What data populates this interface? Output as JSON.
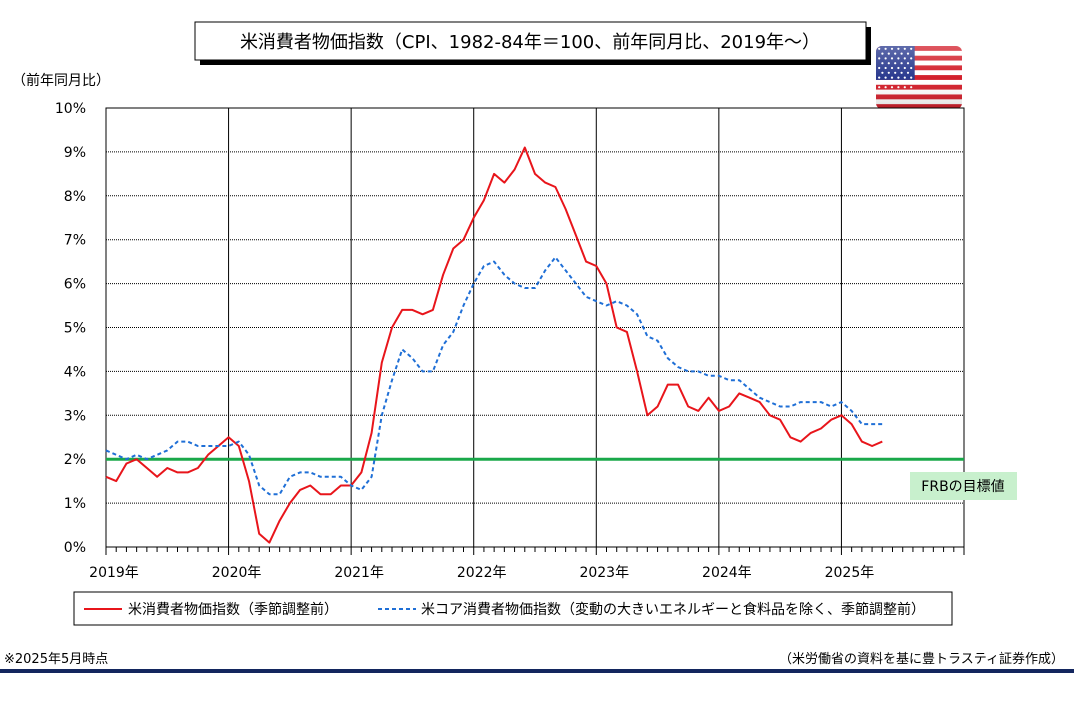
{
  "chart_data": {
    "type": "line",
    "title": "米消費者物価指数（CPI、1982-84年＝100、前年同月比、2019年～）",
    "ylabel": "（前年同月比）",
    "ylim": [
      0,
      10
    ],
    "yticks": [
      "0%",
      "1%",
      "2%",
      "3%",
      "4%",
      "5%",
      "6%",
      "7%",
      "8%",
      "9%",
      "10%"
    ],
    "xlim": [
      0,
      84
    ],
    "xtick_labels": [
      "2019年",
      "2020年",
      "2021年",
      "2022年",
      "2023年",
      "2024年",
      "2025年"
    ],
    "grid": true,
    "legend_position": "bottom",
    "series": [
      {
        "name": "米消費者物価指数（季節調整前）",
        "color": "#e8151b",
        "style": "solid",
        "values": [
          1.6,
          1.5,
          1.9,
          2.0,
          1.8,
          1.6,
          1.8,
          1.7,
          1.7,
          1.8,
          2.1,
          2.3,
          2.5,
          2.3,
          1.5,
          0.3,
          0.1,
          0.6,
          1.0,
          1.3,
          1.4,
          1.2,
          1.2,
          1.4,
          1.4,
          1.7,
          2.6,
          4.2,
          5.0,
          5.4,
          5.4,
          5.3,
          5.4,
          6.2,
          6.8,
          7.0,
          7.5,
          7.9,
          8.5,
          8.3,
          8.6,
          9.1,
          8.5,
          8.3,
          8.2,
          7.7,
          7.1,
          6.5,
          6.4,
          6.0,
          5.0,
          4.9,
          4.0,
          3.0,
          3.2,
          3.7,
          3.7,
          3.2,
          3.1,
          3.4,
          3.1,
          3.2,
          3.5,
          3.4,
          3.3,
          3.0,
          2.9,
          2.5,
          2.4,
          2.6,
          2.7,
          2.9,
          3.0,
          2.8,
          2.4,
          2.3,
          2.4
        ]
      },
      {
        "name": "米コア消費者物価指数（変動の大きいエネルギーと食料品を除く、季節調整前）",
        "color": "#1f6fd6",
        "style": "dashed",
        "values": [
          2.2,
          2.1,
          2.0,
          2.1,
          2.0,
          2.1,
          2.2,
          2.4,
          2.4,
          2.3,
          2.3,
          2.3,
          2.3,
          2.4,
          2.1,
          1.4,
          1.2,
          1.2,
          1.6,
          1.7,
          1.7,
          1.6,
          1.6,
          1.6,
          1.4,
          1.3,
          1.6,
          3.0,
          3.8,
          4.5,
          4.3,
          4.0,
          4.0,
          4.6,
          4.9,
          5.5,
          6.0,
          6.4,
          6.5,
          6.2,
          6.0,
          5.9,
          5.9,
          6.3,
          6.6,
          6.3,
          6.0,
          5.7,
          5.6,
          5.5,
          5.6,
          5.5,
          5.3,
          4.8,
          4.7,
          4.3,
          4.1,
          4.0,
          4.0,
          3.9,
          3.9,
          3.8,
          3.8,
          3.6,
          3.4,
          3.3,
          3.2,
          3.2,
          3.3,
          3.3,
          3.3,
          3.2,
          3.3,
          3.1,
          2.8,
          2.8,
          2.8
        ]
      }
    ],
    "reference_line": {
      "value": 2.0,
      "label": "FRBの目標値",
      "color": "#1aa84a",
      "label_bg": "#c8f0cd"
    }
  },
  "notes": {
    "as_of": "※2025年5月時点",
    "source": "（米労働省の資料を基に豊トラスティ証券作成）"
  },
  "footer_rule_color": "#13265e",
  "flag_icon": "us-flag-icon"
}
